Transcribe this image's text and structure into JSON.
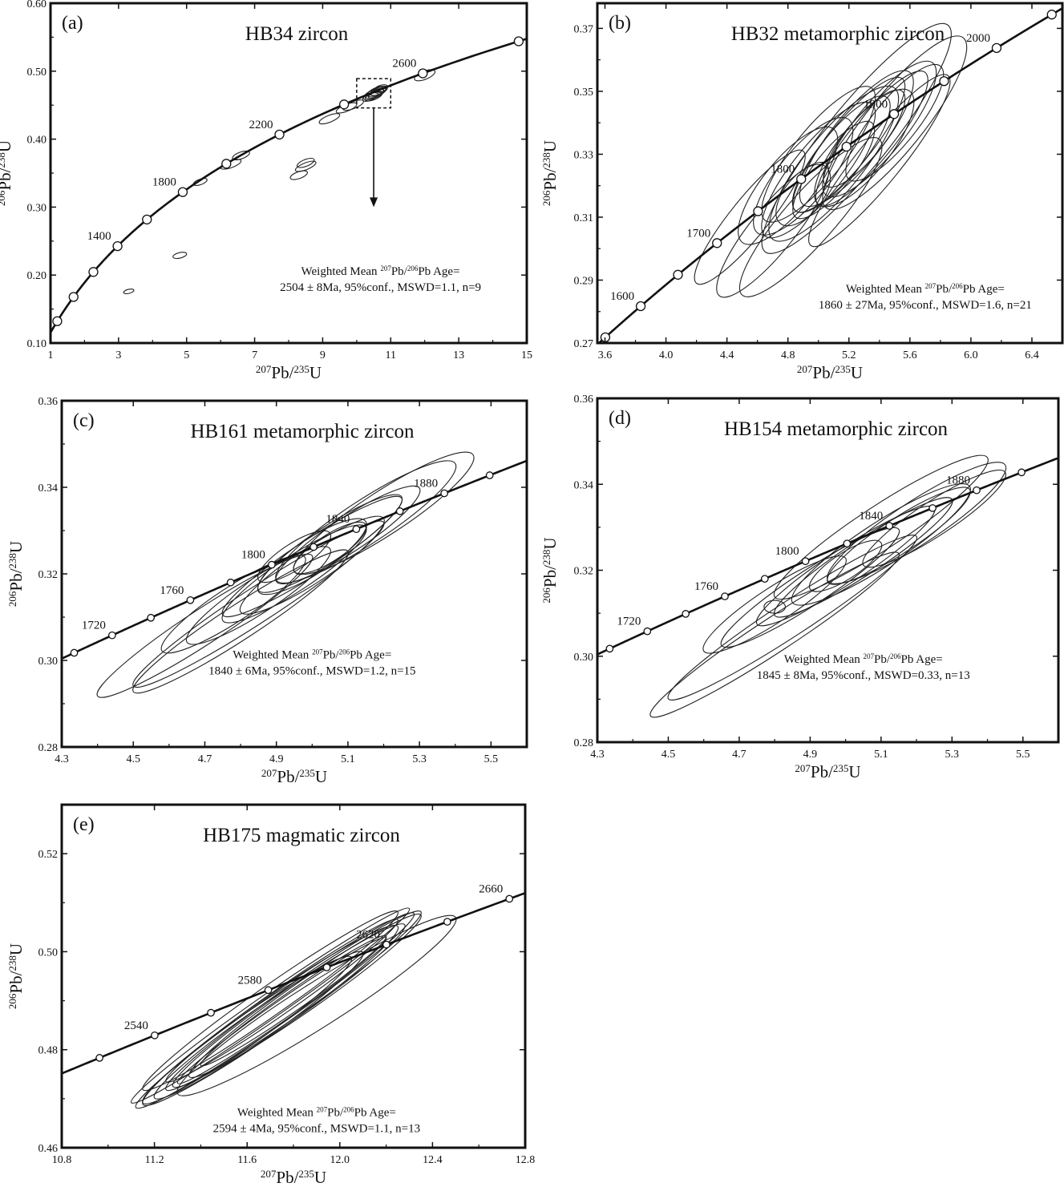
{
  "figure": {
    "x_label": {
      "main": "Pb/",
      "sup1": "207",
      "sup2": "235",
      "unit": "U"
    },
    "y_label": {
      "main": "Pb/",
      "sup1": "206",
      "sup2": "238",
      "unit": "U"
    },
    "annotation_prefix": "Weighted Mean ",
    "annotation_mid": "Pb/",
    "annotation_sup1": "207",
    "annotation_sup2": "206",
    "annotation_suffix": "Pb Age="
  },
  "colors": {
    "ink": "#111111",
    "ellipse": "#222222",
    "background": "#ffffff"
  },
  "chart_data": [
    {
      "type": "scatter",
      "panel_label": "(a)",
      "title": "HB34 zircon",
      "xlim": [
        1,
        15
      ],
      "ylim": [
        0.1,
        0.6
      ],
      "xticks": [
        1,
        3,
        5,
        7,
        9,
        11,
        13,
        15
      ],
      "yticks": [
        0.1,
        0.2,
        0.3,
        0.4,
        0.5,
        0.6
      ],
      "tick_decimals_x": 0,
      "tick_decimals_y": 2,
      "concordia_range_ma": [
        700,
        3300
      ],
      "age_markers": [
        800,
        1000,
        1200,
        1400,
        1600,
        1800,
        2000,
        2200,
        2400,
        2600,
        2800
      ],
      "age_labels": [
        1400,
        1800,
        2200,
        2600
      ],
      "ellipses": [
        {
          "x": 3.3,
          "y": 0.176,
          "rx": 0.15,
          "ry": 0.003,
          "slope": 0.012
        },
        {
          "x": 4.8,
          "y": 0.229,
          "rx": 0.2,
          "ry": 0.004,
          "slope": 0.012
        },
        {
          "x": 5.4,
          "y": 0.337,
          "rx": 0.2,
          "ry": 0.004,
          "slope": 0.018
        },
        {
          "x": 6.3,
          "y": 0.363,
          "rx": 0.3,
          "ry": 0.005,
          "slope": 0.018
        },
        {
          "x": 6.6,
          "y": 0.376,
          "rx": 0.25,
          "ry": 0.005,
          "slope": 0.018
        },
        {
          "x": 8.3,
          "y": 0.347,
          "rx": 0.25,
          "ry": 0.005,
          "slope": 0.018
        },
        {
          "x": 8.5,
          "y": 0.36,
          "rx": 0.3,
          "ry": 0.005,
          "slope": 0.02
        },
        {
          "x": 8.5,
          "y": 0.365,
          "rx": 0.25,
          "ry": 0.005,
          "slope": 0.02
        },
        {
          "x": 9.2,
          "y": 0.43,
          "rx": 0.3,
          "ry": 0.005,
          "slope": 0.02
        },
        {
          "x": 9.7,
          "y": 0.446,
          "rx": 0.3,
          "ry": 0.005,
          "slope": 0.02
        },
        {
          "x": 9.9,
          "y": 0.45,
          "rx": 0.3,
          "ry": 0.005,
          "slope": 0.02
        },
        {
          "x": 10.5,
          "y": 0.466,
          "rx": 0.3,
          "ry": 0.006,
          "slope": 0.02
        },
        {
          "x": 10.55,
          "y": 0.468,
          "rx": 0.3,
          "ry": 0.006,
          "slope": 0.02
        },
        {
          "x": 10.6,
          "y": 0.47,
          "rx": 0.28,
          "ry": 0.006,
          "slope": 0.02
        },
        {
          "x": 10.5,
          "y": 0.463,
          "rx": 0.25,
          "ry": 0.005,
          "slope": 0.02
        },
        {
          "x": 10.65,
          "y": 0.471,
          "rx": 0.25,
          "ry": 0.005,
          "slope": 0.02
        },
        {
          "x": 10.4,
          "y": 0.462,
          "rx": 0.22,
          "ry": 0.005,
          "slope": 0.02
        },
        {
          "x": 10.7,
          "y": 0.474,
          "rx": 0.2,
          "ry": 0.005,
          "slope": 0.02
        },
        {
          "x": 10.55,
          "y": 0.465,
          "rx": 0.2,
          "ry": 0.004,
          "slope": 0.02
        },
        {
          "x": 10.6,
          "y": 0.469,
          "rx": 0.18,
          "ry": 0.004,
          "slope": 0.02
        },
        {
          "x": 12.0,
          "y": 0.494,
          "rx": 0.3,
          "ry": 0.006,
          "slope": 0.02
        }
      ],
      "annotation_line1": "Weighted Mean ²⁰⁷Pb/²⁰⁶Pb Age=",
      "annotation_line2": "2504 ± 8Ma, 95%conf., MSWD=1.1, n=9",
      "annotation_pos": [
        10.7,
        0.2
      ],
      "zoom_box": {
        "x": [
          10.0,
          11.0
        ],
        "y": [
          0.446,
          0.489
        ]
      },
      "arrow": {
        "from": [
          10.5,
          0.446
        ],
        "to": [
          10.5,
          0.3
        ]
      }
    },
    {
      "type": "scatter",
      "panel_label": "(b)",
      "title": "HB32  metamorphic  zircon",
      "xlim": [
        3.55,
        6.6
      ],
      "ylim": [
        0.27,
        0.378
      ],
      "xticks": [
        3.6,
        4.0,
        4.4,
        4.8,
        5.2,
        5.6,
        6.0,
        6.4
      ],
      "yticks": [
        0.27,
        0.29,
        0.31,
        0.33,
        0.35,
        0.37
      ],
      "tick_decimals_x": 1,
      "tick_decimals_y": 2,
      "concordia_range_ma": [
        1540,
        2080
      ],
      "age_markers": [
        1550,
        1600,
        1650,
        1700,
        1750,
        1800,
        1850,
        1900,
        1950,
        2000,
        2050
      ],
      "age_labels": [
        1600,
        1700,
        1800,
        1900,
        2000
      ],
      "ellipses": [
        {
          "x": 4.55,
          "y": 0.31,
          "rx": 0.35,
          "ry": 0.006,
          "slope": 0.06
        },
        {
          "x": 4.7,
          "y": 0.306,
          "rx": 0.35,
          "ry": 0.007,
          "slope": 0.06
        },
        {
          "x": 4.8,
          "y": 0.32,
          "rx": 0.3,
          "ry": 0.008,
          "slope": 0.06
        },
        {
          "x": 4.9,
          "y": 0.323,
          "rx": 0.3,
          "ry": 0.008,
          "slope": 0.06
        },
        {
          "x": 5.0,
          "y": 0.325,
          "rx": 0.35,
          "ry": 0.008,
          "slope": 0.06
        },
        {
          "x": 5.0,
          "y": 0.33,
          "rx": 0.35,
          "ry": 0.008,
          "slope": 0.06
        },
        {
          "x": 5.1,
          "y": 0.327,
          "rx": 0.4,
          "ry": 0.009,
          "slope": 0.06
        },
        {
          "x": 5.15,
          "y": 0.33,
          "rx": 0.3,
          "ry": 0.007,
          "slope": 0.06
        },
        {
          "x": 5.2,
          "y": 0.333,
          "rx": 0.35,
          "ry": 0.007,
          "slope": 0.06
        },
        {
          "x": 5.25,
          "y": 0.335,
          "rx": 0.35,
          "ry": 0.008,
          "slope": 0.06
        },
        {
          "x": 5.3,
          "y": 0.332,
          "rx": 0.3,
          "ry": 0.008,
          "slope": 0.06
        },
        {
          "x": 5.35,
          "y": 0.335,
          "rx": 0.35,
          "ry": 0.007,
          "slope": 0.06
        },
        {
          "x": 5.4,
          "y": 0.338,
          "rx": 0.35,
          "ry": 0.008,
          "slope": 0.06
        },
        {
          "x": 5.5,
          "y": 0.34,
          "rx": 0.3,
          "ry": 0.007,
          "slope": 0.06
        },
        {
          "x": 5.5,
          "y": 0.34,
          "rx": 0.45,
          "ry": 0.009,
          "slope": 0.06
        },
        {
          "x": 5.25,
          "y": 0.335,
          "rx": 0.6,
          "ry": 0.01,
          "slope": 0.06
        },
        {
          "x": 4.95,
          "y": 0.31,
          "rx": 0.45,
          "ry": 0.008,
          "slope": 0.055
        },
        {
          "x": 4.9,
          "y": 0.317,
          "rx": 0.15,
          "ry": 0.006,
          "slope": 0.06
        },
        {
          "x": 5.4,
          "y": 0.328,
          "rx": 0.45,
          "ry": 0.007,
          "slope": 0.06
        },
        {
          "x": 5.3,
          "y": 0.335,
          "rx": 0.25,
          "ry": 0.006,
          "slope": 0.06
        },
        {
          "x": 5.1,
          "y": 0.325,
          "rx": 0.25,
          "ry": 0.006,
          "slope": 0.06
        }
      ],
      "annotation_line1": "Weighted Mean ²⁰⁷Pb/²⁰⁶Pb Age=",
      "annotation_line2": "1860 ± 27Ma, 95%conf., MSWD=1.6, n=21",
      "annotation_pos": [
        5.7,
        0.286
      ]
    },
    {
      "type": "scatter",
      "panel_label": "(c)",
      "title": "HB161 metamorphic zircon",
      "xlim": [
        4.3,
        5.6
      ],
      "ylim": [
        0.28,
        0.36
      ],
      "xticks": [
        4.3,
        4.5,
        4.7,
        4.9,
        5.1,
        5.3,
        5.5
      ],
      "yticks": [
        0.28,
        0.3,
        0.32,
        0.34,
        0.36
      ],
      "tick_decimals_x": 1,
      "tick_decimals_y": 2,
      "concordia_range_ma": [
        1690,
        1920
      ],
      "age_markers": [
        1700,
        1720,
        1740,
        1760,
        1780,
        1800,
        1820,
        1840,
        1860,
        1880,
        1900
      ],
      "age_labels": [
        1720,
        1760,
        1800,
        1840,
        1880
      ],
      "ellipses": [
        {
          "x": 4.8,
          "y": 0.309,
          "rx": 0.3,
          "ry": 0.004,
          "slope": 0.054
        },
        {
          "x": 4.78,
          "y": 0.313,
          "rx": 0.2,
          "ry": 0.004,
          "slope": 0.054
        },
        {
          "x": 4.85,
          "y": 0.315,
          "rx": 0.2,
          "ry": 0.004,
          "slope": 0.054
        },
        {
          "x": 4.95,
          "y": 0.32,
          "rx": 0.2,
          "ry": 0.004,
          "slope": 0.054
        },
        {
          "x": 5.0,
          "y": 0.322,
          "rx": 0.2,
          "ry": 0.004,
          "slope": 0.054
        },
        {
          "x": 5.0,
          "y": 0.324,
          "rx": 0.15,
          "ry": 0.004,
          "slope": 0.054
        },
        {
          "x": 5.05,
          "y": 0.327,
          "rx": 0.2,
          "ry": 0.004,
          "slope": 0.054
        },
        {
          "x": 5.1,
          "y": 0.329,
          "rx": 0.2,
          "ry": 0.004,
          "slope": 0.054
        },
        {
          "x": 5.15,
          "y": 0.332,
          "rx": 0.25,
          "ry": 0.005,
          "slope": 0.054
        },
        {
          "x": 5.2,
          "y": 0.334,
          "rx": 0.25,
          "ry": 0.005,
          "slope": 0.054
        },
        {
          "x": 5.0,
          "y": 0.324,
          "rx": 0.25,
          "ry": 0.004,
          "slope": 0.054
        },
        {
          "x": 4.95,
          "y": 0.324,
          "rx": 0.1,
          "ry": 0.003,
          "slope": 0.054
        },
        {
          "x": 5.05,
          "y": 0.326,
          "rx": 0.1,
          "ry": 0.003,
          "slope": 0.054
        },
        {
          "x": 4.85,
          "y": 0.313,
          "rx": 0.35,
          "ry": 0.004,
          "slope": 0.054
        },
        {
          "x": 4.7,
          "y": 0.308,
          "rx": 0.3,
          "ry": 0.004,
          "slope": 0.054
        }
      ],
      "annotation_line1": "Weighted Mean ²⁰⁷Pb/²⁰⁶Pb Age=",
      "annotation_line2": "1840  ± 6Ma, 95%conf., MSWD=1.2, n=15",
      "annotation_pos": [
        5.0,
        0.3005
      ]
    },
    {
      "type": "scatter",
      "panel_label": "(d)",
      "title": "HB154 metamorphic zircon",
      "xlim": [
        4.3,
        5.6
      ],
      "ylim": [
        0.28,
        0.36
      ],
      "xticks": [
        4.3,
        4.5,
        4.7,
        4.9,
        5.1,
        5.3,
        5.5
      ],
      "yticks": [
        0.28,
        0.3,
        0.32,
        0.34,
        0.36
      ],
      "tick_decimals_x": 1,
      "tick_decimals_y": 2,
      "concordia_range_ma": [
        1690,
        1920
      ],
      "age_markers": [
        1700,
        1720,
        1740,
        1760,
        1780,
        1800,
        1820,
        1840,
        1860,
        1880,
        1900
      ],
      "age_labels": [
        1720,
        1760,
        1800,
        1840,
        1880
      ],
      "ellipses": [
        {
          "x": 4.8,
          "y": 0.305,
          "rx": 0.35,
          "ry": 0.004,
          "slope": 0.054
        },
        {
          "x": 4.8,
          "y": 0.312,
          "rx": 0.2,
          "ry": 0.004,
          "slope": 0.054
        },
        {
          "x": 4.9,
          "y": 0.316,
          "rx": 0.25,
          "ry": 0.004,
          "slope": 0.054
        },
        {
          "x": 5.0,
          "y": 0.321,
          "rx": 0.25,
          "ry": 0.004,
          "slope": 0.054
        },
        {
          "x": 5.05,
          "y": 0.323,
          "rx": 0.25,
          "ry": 0.004,
          "slope": 0.054
        },
        {
          "x": 5.1,
          "y": 0.326,
          "rx": 0.25,
          "ry": 0.005,
          "slope": 0.054
        },
        {
          "x": 5.15,
          "y": 0.328,
          "rx": 0.2,
          "ry": 0.004,
          "slope": 0.054
        },
        {
          "x": 5.2,
          "y": 0.331,
          "rx": 0.25,
          "ry": 0.005,
          "slope": 0.054
        },
        {
          "x": 5.1,
          "y": 0.33,
          "rx": 0.3,
          "ry": 0.005,
          "slope": 0.054
        },
        {
          "x": 5.0,
          "y": 0.321,
          "rx": 0.1,
          "ry": 0.003,
          "slope": 0.054
        },
        {
          "x": 5.25,
          "y": 0.332,
          "rx": 0.2,
          "ry": 0.004,
          "slope": 0.054
        },
        {
          "x": 4.85,
          "y": 0.309,
          "rx": 0.35,
          "ry": 0.004,
          "slope": 0.054
        },
        {
          "x": 4.8,
          "y": 0.3115,
          "rx": 0.03,
          "ry": 0.0015,
          "slope": 0.0
        }
      ],
      "annotation_line1": "Weighted Mean ²⁰⁷Pb/²⁰⁶Pb Age=",
      "annotation_line2": "1845 ± 8Ma, 95%conf., MSWD=0.33, n=13",
      "annotation_pos": [
        5.05,
        0.2985
      ]
    },
    {
      "type": "scatter",
      "panel_label": "(e)",
      "title": "HB175 magmatic zircon",
      "xlim": [
        10.8,
        12.8
      ],
      "ylim": [
        0.46,
        0.53
      ],
      "xticks": [
        10.8,
        11.2,
        11.6,
        12.0,
        12.4,
        12.8
      ],
      "yticks": [
        0.46,
        0.48,
        0.5,
        0.52
      ],
      "tick_decimals_x": 1,
      "tick_decimals_y": 2,
      "concordia_range_ma": [
        2505,
        2690
      ],
      "age_markers": [
        2520,
        2540,
        2560,
        2580,
        2600,
        2620,
        2640,
        2660
      ],
      "age_labels": [
        2540,
        2580,
        2620,
        2660
      ],
      "ellipses": [
        {
          "x": 11.7,
          "y": 0.49,
          "rx": 0.55,
          "ry": 0.003,
          "slope": 0.033
        },
        {
          "x": 11.72,
          "y": 0.488,
          "rx": 0.6,
          "ry": 0.003,
          "slope": 0.033
        },
        {
          "x": 11.75,
          "y": 0.49,
          "rx": 0.5,
          "ry": 0.0025,
          "slope": 0.033
        },
        {
          "x": 11.7,
          "y": 0.487,
          "rx": 0.55,
          "ry": 0.0035,
          "slope": 0.033
        },
        {
          "x": 11.78,
          "y": 0.489,
          "rx": 0.5,
          "ry": 0.003,
          "slope": 0.033
        },
        {
          "x": 11.8,
          "y": 0.49,
          "rx": 0.55,
          "ry": 0.003,
          "slope": 0.033
        },
        {
          "x": 11.65,
          "y": 0.485,
          "rx": 0.45,
          "ry": 0.003,
          "slope": 0.033
        },
        {
          "x": 11.7,
          "y": 0.489,
          "rx": 0.6,
          "ry": 0.0025,
          "slope": 0.033
        },
        {
          "x": 11.85,
          "y": 0.491,
          "rx": 0.5,
          "ry": 0.003,
          "slope": 0.033
        },
        {
          "x": 11.9,
          "y": 0.489,
          "rx": 0.6,
          "ry": 0.0045,
          "slope": 0.03
        },
        {
          "x": 11.6,
          "y": 0.484,
          "rx": 0.45,
          "ry": 0.003,
          "slope": 0.033
        },
        {
          "x": 11.75,
          "y": 0.488,
          "rx": 0.45,
          "ry": 0.002,
          "slope": 0.033
        },
        {
          "x": 11.8,
          "y": 0.49,
          "rx": 0.4,
          "ry": 0.002,
          "slope": 0.033
        }
      ],
      "annotation_line1": "Weighted Mean ²⁰⁷Pb/²⁰⁶Pb Age=",
      "annotation_line2": "2594 ± 4Ma, 95%conf., MSWD=1.1, n=13",
      "annotation_pos": [
        11.9,
        0.4665
      ]
    }
  ]
}
